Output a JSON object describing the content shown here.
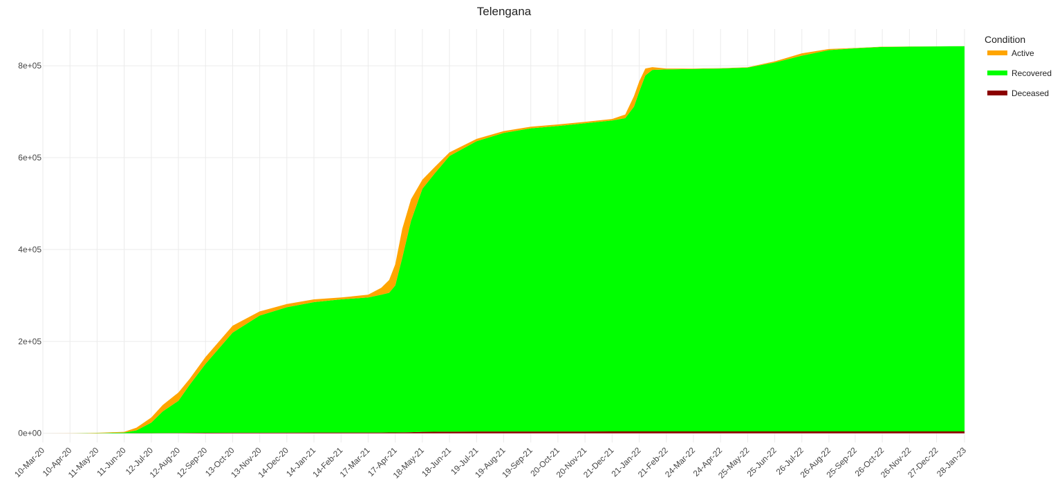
{
  "chart_data": {
    "type": "area",
    "title": "Telengana",
    "xlabel": "",
    "ylabel": "",
    "stacked": true,
    "grid": true,
    "legend": {
      "title": "Condition",
      "position": "right",
      "entries": [
        "Active",
        "Recovered",
        "Deceased"
      ]
    },
    "colors": {
      "Active": "#FFA500",
      "Recovered": "#00FF00",
      "Deceased": "#8B0000"
    },
    "x_ticks": [
      "10-Mar-20",
      "10-Apr-20",
      "11-May-20",
      "11-Jun-20",
      "12-Jul-20",
      "12-Aug-20",
      "12-Sep-20",
      "13-Oct-20",
      "13-Nov-20",
      "14-Dec-20",
      "14-Jan-21",
      "14-Feb-21",
      "17-Mar-21",
      "17-Apr-21",
      "18-May-21",
      "18-Jun-21",
      "19-Jul-21",
      "19-Aug-21",
      "19-Sep-21",
      "20-Oct-21",
      "20-Nov-21",
      "21-Dec-21",
      "21-Jan-22",
      "21-Feb-22",
      "24-Mar-22",
      "24-Apr-22",
      "25-May-22",
      "25-Jun-22",
      "26-Jul-22",
      "26-Aug-22",
      "25-Sep-22",
      "26-Oct-22",
      "26-Nov-22",
      "27-Dec-22",
      "28-Jan-23"
    ],
    "y_ticks": [
      "0e+00",
      "2e+05",
      "4e+05",
      "6e+05",
      "8e+05"
    ],
    "ylim": [
      -20000,
      880000
    ],
    "x": [
      "2020-03-10",
      "2020-04-10",
      "2020-05-11",
      "2020-06-11",
      "2020-06-25",
      "2020-07-12",
      "2020-07-25",
      "2020-08-12",
      "2020-08-25",
      "2020-09-12",
      "2020-10-13",
      "2020-11-13",
      "2020-12-14",
      "2021-01-14",
      "2021-02-14",
      "2021-03-17",
      "2021-04-01",
      "2021-04-10",
      "2021-04-17",
      "2021-04-25",
      "2021-05-05",
      "2021-05-18",
      "2021-06-01",
      "2021-06-18",
      "2021-07-19",
      "2021-08-19",
      "2021-09-19",
      "2021-10-20",
      "2021-11-20",
      "2021-12-21",
      "2022-01-05",
      "2022-01-15",
      "2022-01-21",
      "2022-01-28",
      "2022-02-05",
      "2022-02-21",
      "2022-03-24",
      "2022-04-24",
      "2022-05-25",
      "2022-06-25",
      "2022-07-26",
      "2022-08-26",
      "2022-09-25",
      "2022-10-26",
      "2022-11-26",
      "2022-12-27",
      "2023-01-28"
    ],
    "series": [
      {
        "name": "Deceased",
        "values": [
          0,
          0,
          30,
          150,
          260,
          350,
          550,
          700,
          850,
          1000,
          1200,
          1300,
          1450,
          1550,
          1600,
          1650,
          1700,
          1750,
          1850,
          2000,
          2300,
          3100,
          3400,
          3600,
          3800,
          3850,
          3880,
          3900,
          3950,
          4010,
          4030,
          4040,
          4050,
          4060,
          4080,
          4100,
          4110,
          4110,
          4110,
          4110,
          4110,
          4110,
          4111,
          4111,
          4111,
          4111,
          4111
        ]
      },
      {
        "name": "Recovered",
        "values": [
          0,
          0,
          300,
          1500,
          6000,
          23000,
          47000,
          70000,
          105000,
          150000,
          218000,
          255000,
          273000,
          284000,
          290000,
          294000,
          300000,
          304000,
          320000,
          380000,
          460000,
          529000,
          562000,
          600000,
          632000,
          650000,
          660000,
          665000,
          671000,
          677000,
          682000,
          707000,
          740000,
          775000,
          787000,
          788000,
          789000,
          790000,
          792000,
          803000,
          818000,
          830000,
          834000,
          837000,
          837500,
          838000,
          838500
        ]
      },
      {
        "name": "Active",
        "values": [
          0,
          100,
          700,
          1500,
          6000,
          11000,
          14000,
          18000,
          13000,
          15000,
          15000,
          9000,
          7000,
          6000,
          4000,
          6000,
          15000,
          28000,
          46000,
          63000,
          47000,
          20000,
          14000,
          8000,
          5000,
          4000,
          3500,
          3500,
          3000,
          3200,
          8000,
          23000,
          22000,
          15000,
          6000,
          2000,
          1000,
          600,
          800,
          2500,
          5000,
          2500,
          700,
          500,
          400,
          300,
          200
        ]
      }
    ]
  }
}
